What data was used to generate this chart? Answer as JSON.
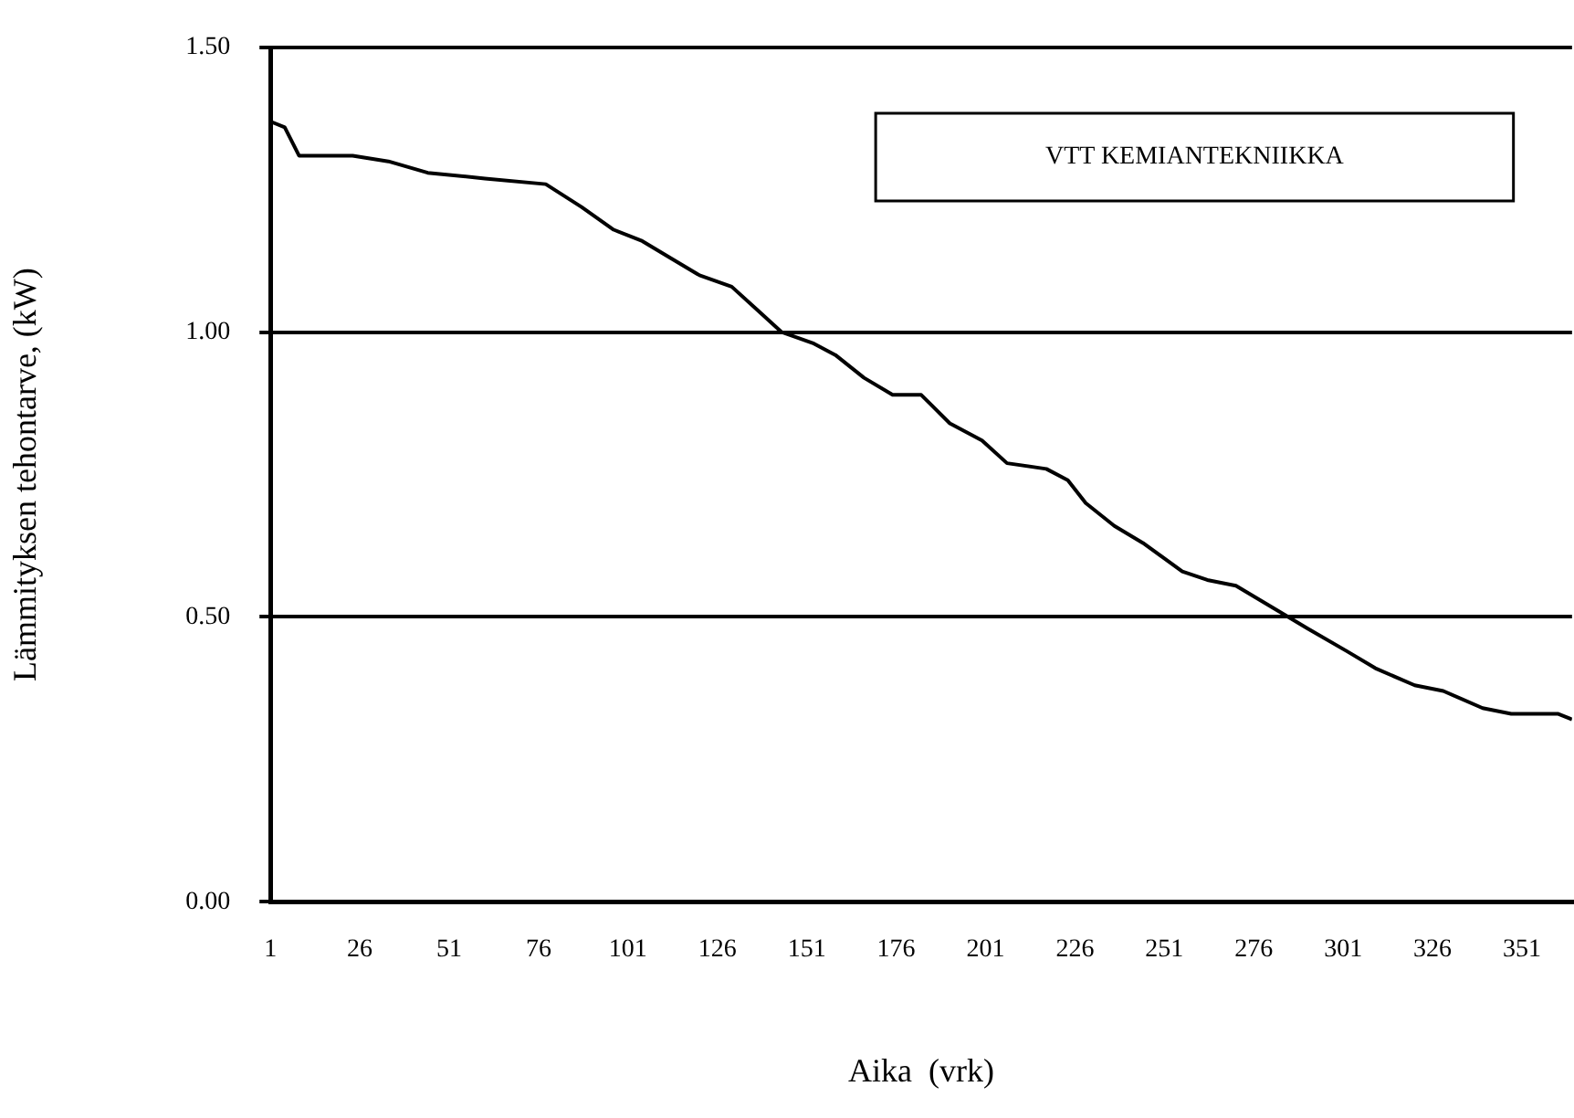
{
  "chart_data": {
    "type": "line",
    "xlabel": "Aika  (vrk)",
    "ylabel": "Lämmityksen tehontarve, (kW)",
    "annotations": [
      "VTT KEMIANTEKNIIKKA"
    ],
    "xlim": [
      1,
      365
    ],
    "xticks": [
      1,
      26,
      51,
      76,
      101,
      126,
      151,
      176,
      201,
      226,
      251,
      276,
      301,
      326,
      351
    ],
    "ylim": [
      0,
      1.5
    ],
    "yticks": [
      {
        "value": 0,
        "label": "0.00"
      },
      {
        "value": 0.5,
        "label": "0.50"
      },
      {
        "value": 1,
        "label": "1.00"
      },
      {
        "value": 1.5,
        "label": "1.50"
      }
    ],
    "grid": "y",
    "legend": false,
    "marker": "none",
    "line_style": "solid",
    "series": [
      {
        "color": "#000000",
        "x": [
          1,
          5,
          9,
          24,
          34,
          45,
          61,
          78,
          83,
          88,
          97,
          105,
          113,
          121,
          130,
          137,
          144,
          153,
          159,
          167,
          175,
          183,
          191,
          200,
          207,
          218,
          224,
          229,
          237,
          245,
          256,
          263,
          271,
          283,
          291,
          302,
          310,
          321,
          329,
          340,
          348,
          361,
          365
        ],
        "values": [
          1.37,
          1.36,
          1.31,
          1.31,
          1.3,
          1.28,
          1.27,
          1.26,
          1.24,
          1.22,
          1.18,
          1.16,
          1.13,
          1.1,
          1.08,
          1.04,
          1.0,
          0.98,
          0.96,
          0.92,
          0.89,
          0.89,
          0.84,
          0.81,
          0.77,
          0.76,
          0.74,
          0.7,
          0.66,
          0.63,
          0.58,
          0.565,
          0.555,
          0.51,
          0.48,
          0.44,
          0.41,
          0.38,
          0.37,
          0.34,
          0.33,
          0.33,
          0.32
        ]
      }
    ]
  }
}
